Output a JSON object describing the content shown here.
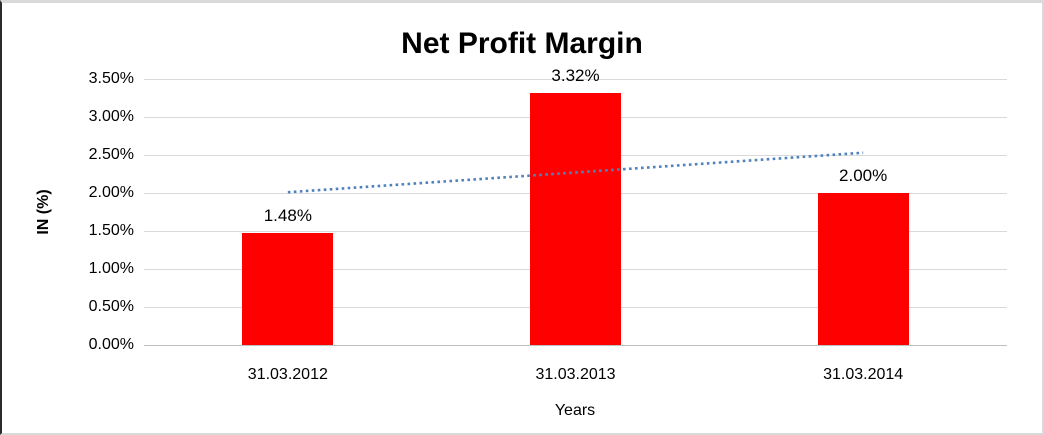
{
  "chart_data": {
    "type": "bar",
    "title": "Net Profit Margin",
    "xlabel": "Years",
    "ylabel": "IN (%)",
    "categories": [
      "31.03.2012",
      "31.03.2013",
      "31.03.2014"
    ],
    "values": [
      1.48,
      3.32,
      2.0
    ],
    "value_labels": [
      "1.48%",
      "3.32%",
      "2.00%"
    ],
    "ylim": [
      0,
      3.5
    ],
    "ytick_step": 0.5,
    "ytick_labels": [
      "0.00%",
      "0.50%",
      "1.00%",
      "1.50%",
      "2.00%",
      "2.50%",
      "3.00%",
      "3.50%"
    ],
    "grid": true,
    "legend": false,
    "trendline": {
      "shape": "linear",
      "line_style": "dotted",
      "color": "#4f81bd",
      "start_value": 2.01,
      "end_value": 2.53
    },
    "colors": {
      "bar": "#ff0000",
      "gridline": "#d9d9d9",
      "axis_line": "#bfbfbf",
      "text": "#000000"
    }
  }
}
